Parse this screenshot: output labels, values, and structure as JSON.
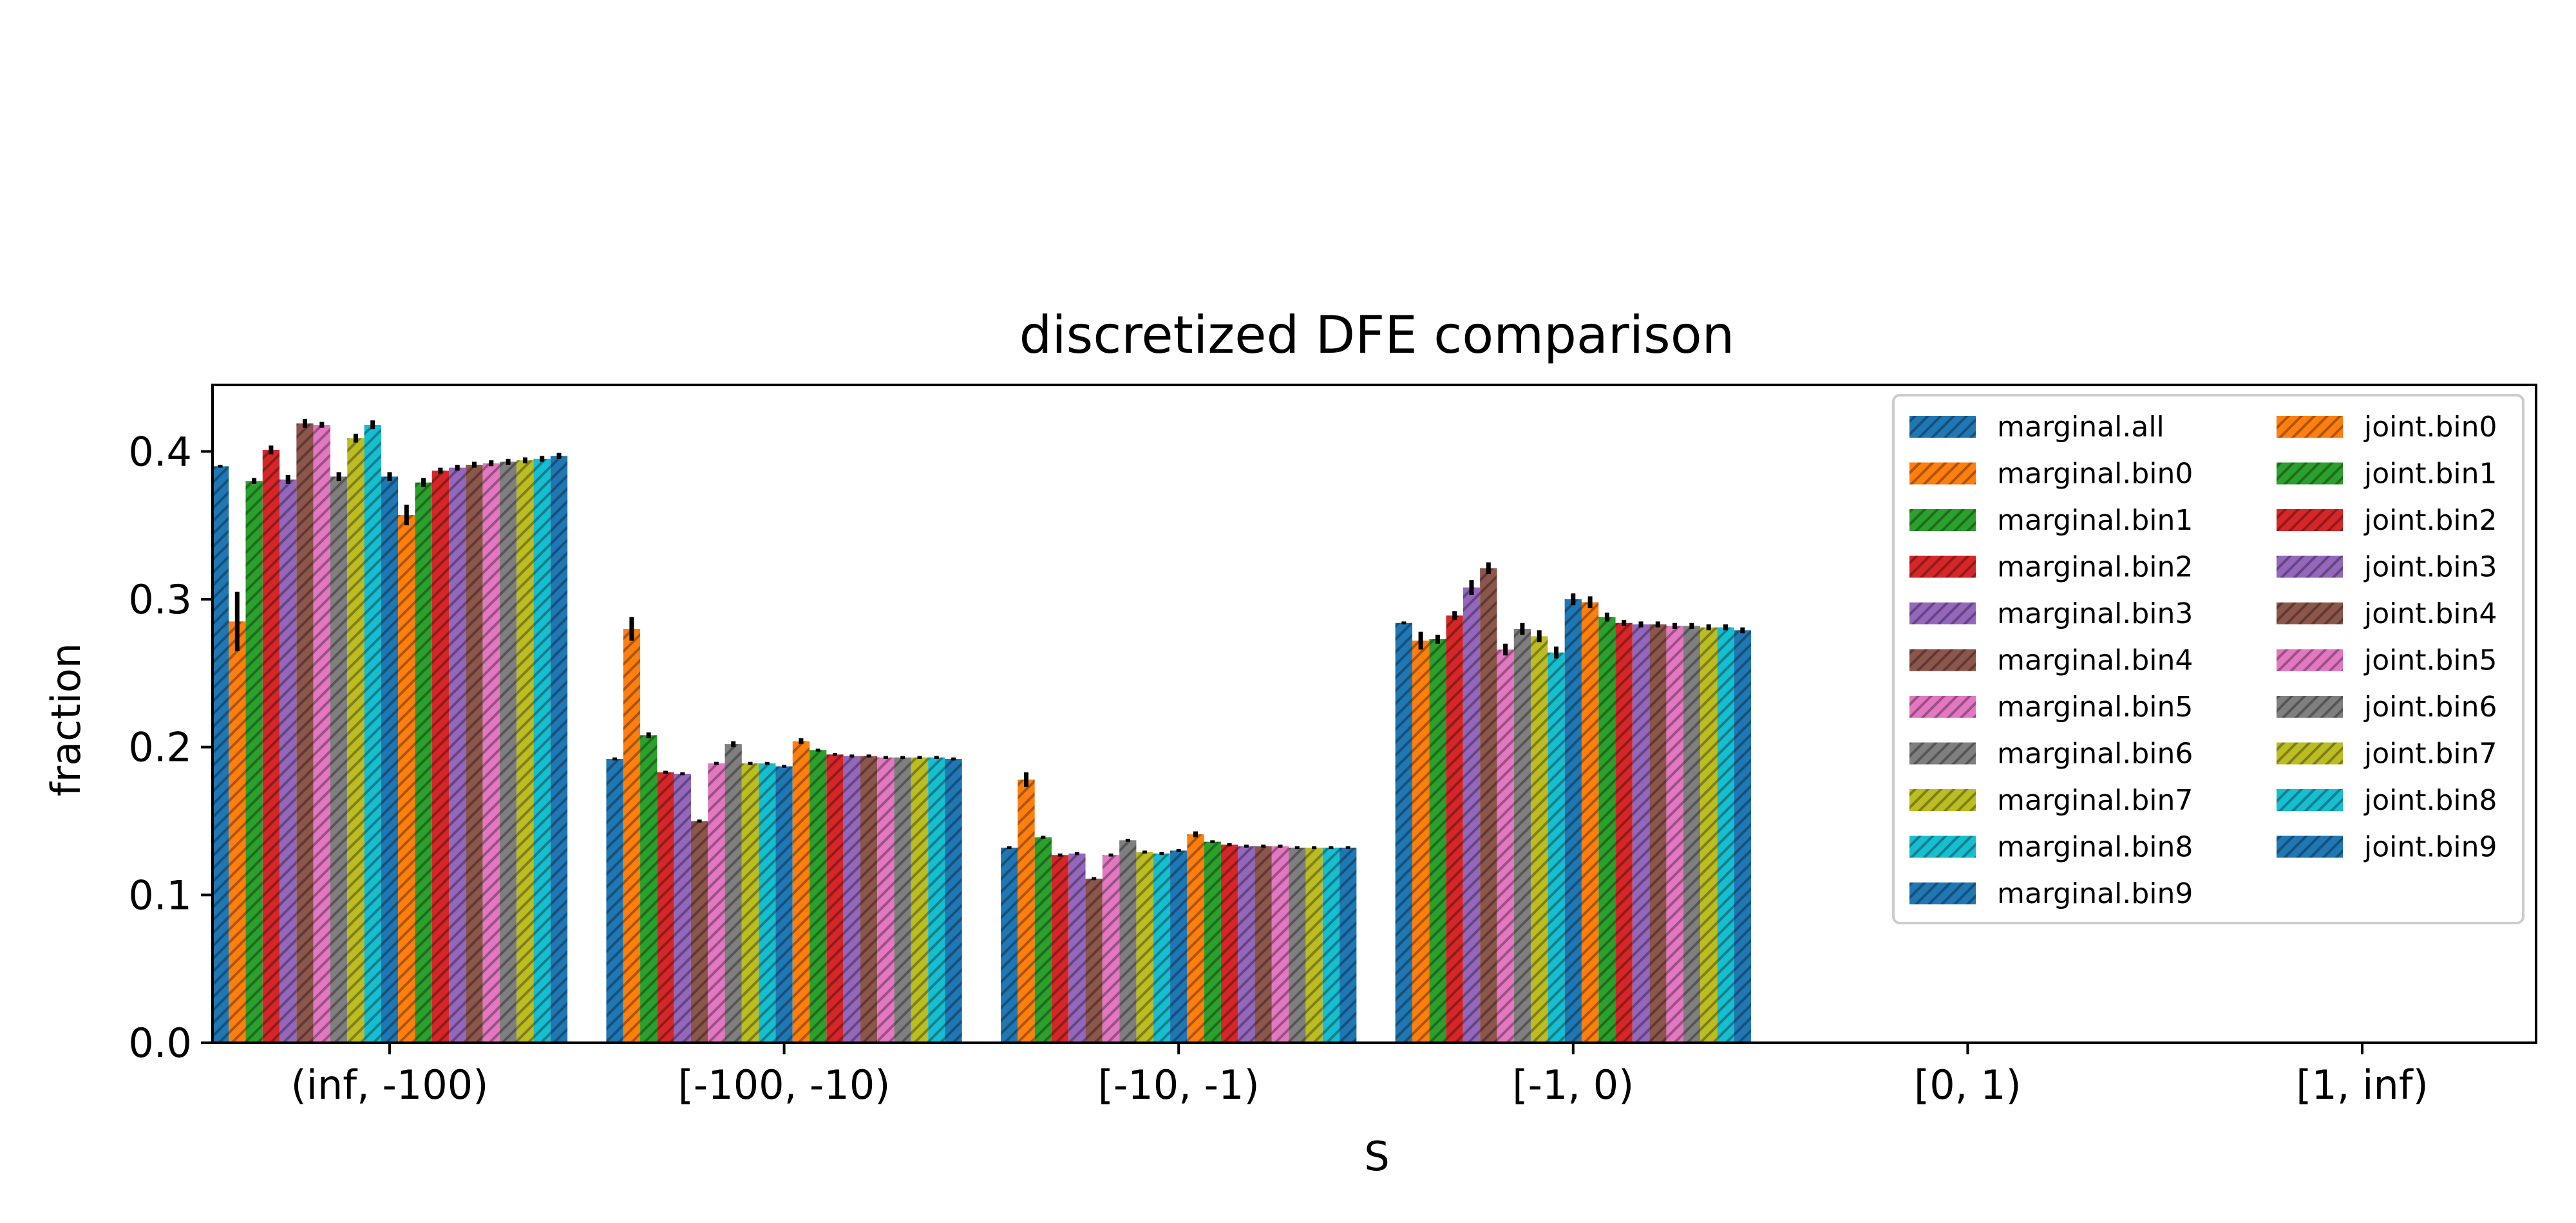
{
  "chart_data": {
    "type": "bar",
    "title": "discretized DFE comparison",
    "xlabel": "S",
    "ylabel": "fraction",
    "ylim": [
      0,
      0.445
    ],
    "yticks": [
      "0.0",
      "0.1",
      "0.2",
      "0.3",
      "0.4"
    ],
    "categories": [
      "(inf, -100)",
      "[-100, -10)",
      "[-10, -1)",
      "[-1, 0)",
      "[0, 1)",
      "[1, inf)"
    ],
    "grid": false,
    "legend_position": "top-right",
    "legend_columns": 2,
    "hatch": "diagonal",
    "series": [
      {
        "name": "marginal.all",
        "color": "#1f77b4",
        "values": [
          0.39,
          0.192,
          0.132,
          0.284,
          0,
          0
        ],
        "errors": [
          0.001,
          0.001,
          0.001,
          0.001,
          0,
          0
        ]
      },
      {
        "name": "marginal.bin0",
        "color": "#ff7f0e",
        "values": [
          0.285,
          0.28,
          0.178,
          0.272,
          0,
          0
        ],
        "errors": [
          0.02,
          0.008,
          0.005,
          0.006,
          0,
          0
        ]
      },
      {
        "name": "marginal.bin1",
        "color": "#2ca02c",
        "values": [
          0.38,
          0.208,
          0.139,
          0.273,
          0,
          0
        ],
        "errors": [
          0.002,
          0.002,
          0.001,
          0.003,
          0,
          0
        ]
      },
      {
        "name": "marginal.bin2",
        "color": "#d62728",
        "values": [
          0.401,
          0.183,
          0.127,
          0.289,
          0,
          0
        ],
        "errors": [
          0.003,
          0.001,
          0.001,
          0.003,
          0,
          0
        ]
      },
      {
        "name": "marginal.bin3",
        "color": "#9467bd",
        "values": [
          0.381,
          0.182,
          0.128,
          0.308,
          0,
          0
        ],
        "errors": [
          0.003,
          0.001,
          0.001,
          0.005,
          0,
          0
        ]
      },
      {
        "name": "marginal.bin4",
        "color": "#8c564b",
        "values": [
          0.419,
          0.15,
          0.111,
          0.321,
          0,
          0
        ],
        "errors": [
          0.003,
          0.001,
          0.001,
          0.004,
          0,
          0
        ]
      },
      {
        "name": "marginal.bin5",
        "color": "#e377c2",
        "values": [
          0.418,
          0.189,
          0.127,
          0.266,
          0,
          0
        ],
        "errors": [
          0.002,
          0.001,
          0.001,
          0.004,
          0,
          0
        ]
      },
      {
        "name": "marginal.bin6",
        "color": "#7f7f7f",
        "values": [
          0.383,
          0.202,
          0.137,
          0.28,
          0,
          0
        ],
        "errors": [
          0.003,
          0.002,
          0.001,
          0.004,
          0,
          0
        ]
      },
      {
        "name": "marginal.bin7",
        "color": "#bcbd22",
        "values": [
          0.409,
          0.189,
          0.129,
          0.275,
          0,
          0
        ],
        "errors": [
          0.003,
          0.001,
          0.001,
          0.004,
          0,
          0
        ]
      },
      {
        "name": "marginal.bin8",
        "color": "#17becf",
        "values": [
          0.418,
          0.189,
          0.128,
          0.264,
          0,
          0
        ],
        "errors": [
          0.003,
          0.001,
          0.001,
          0.004,
          0,
          0
        ]
      },
      {
        "name": "marginal.bin9",
        "color": "#1f77b4",
        "values": [
          0.383,
          0.187,
          0.13,
          0.3,
          0,
          0
        ],
        "errors": [
          0.003,
          0.001,
          0.001,
          0.004,
          0,
          0
        ]
      },
      {
        "name": "joint.bin0",
        "color": "#ff7f0e",
        "values": [
          0.357,
          0.204,
          0.141,
          0.298,
          0,
          0
        ],
        "errors": [
          0.007,
          0.002,
          0.002,
          0.004,
          0,
          0
        ]
      },
      {
        "name": "joint.bin1",
        "color": "#2ca02c",
        "values": [
          0.379,
          0.198,
          0.136,
          0.288,
          0,
          0
        ],
        "errors": [
          0.003,
          0.001,
          0.001,
          0.003,
          0,
          0
        ]
      },
      {
        "name": "joint.bin2",
        "color": "#d62728",
        "values": [
          0.387,
          0.195,
          0.134,
          0.284,
          0,
          0
        ],
        "errors": [
          0.002,
          0.001,
          0.001,
          0.002,
          0,
          0
        ]
      },
      {
        "name": "joint.bin3",
        "color": "#9467bd",
        "values": [
          0.389,
          0.194,
          0.133,
          0.283,
          0,
          0
        ],
        "errors": [
          0.002,
          0.001,
          0.001,
          0.002,
          0,
          0
        ]
      },
      {
        "name": "joint.bin4",
        "color": "#8c564b",
        "values": [
          0.391,
          0.194,
          0.133,
          0.283,
          0,
          0
        ],
        "errors": [
          0.002,
          0.001,
          0.001,
          0.002,
          0,
          0
        ]
      },
      {
        "name": "joint.bin5",
        "color": "#e377c2",
        "values": [
          0.392,
          0.193,
          0.133,
          0.282,
          0,
          0
        ],
        "errors": [
          0.002,
          0.001,
          0.001,
          0.002,
          0,
          0
        ]
      },
      {
        "name": "joint.bin6",
        "color": "#7f7f7f",
        "values": [
          0.393,
          0.193,
          0.132,
          0.282,
          0,
          0
        ],
        "errors": [
          0.002,
          0.001,
          0.001,
          0.002,
          0,
          0
        ]
      },
      {
        "name": "joint.bin7",
        "color": "#bcbd22",
        "values": [
          0.394,
          0.193,
          0.132,
          0.281,
          0,
          0
        ],
        "errors": [
          0.002,
          0.001,
          0.001,
          0.002,
          0,
          0
        ]
      },
      {
        "name": "joint.bin8",
        "color": "#17becf",
        "values": [
          0.395,
          0.193,
          0.132,
          0.281,
          0,
          0
        ],
        "errors": [
          0.002,
          0.001,
          0.001,
          0.002,
          0,
          0
        ]
      },
      {
        "name": "joint.bin9",
        "color": "#1f77b4",
        "values": [
          0.397,
          0.192,
          0.132,
          0.279,
          0,
          0
        ],
        "errors": [
          0.002,
          0.001,
          0.001,
          0.002,
          0,
          0
        ]
      }
    ]
  }
}
